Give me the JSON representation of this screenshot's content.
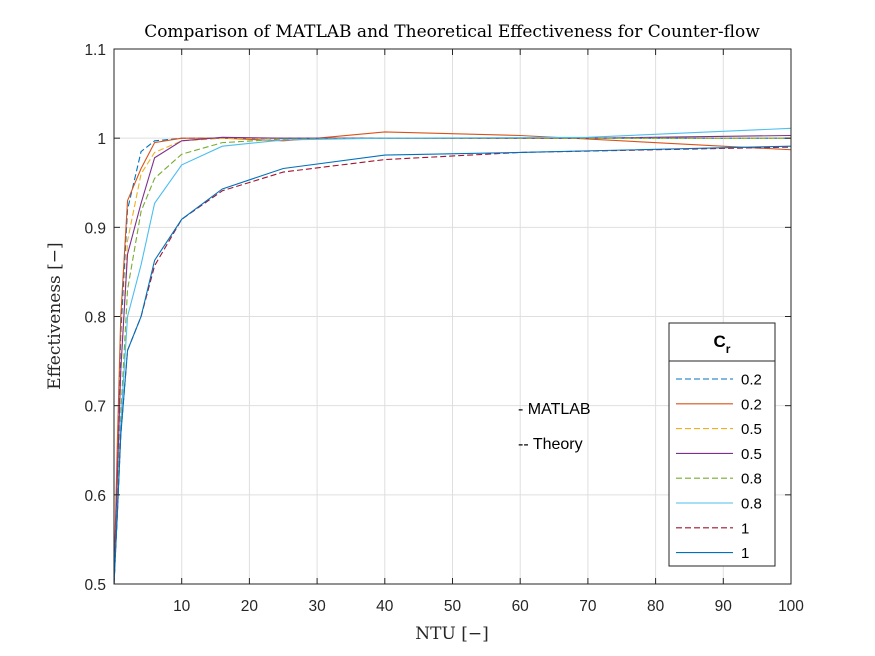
{
  "chart_data": {
    "type": "line",
    "title": "Comparison of MATLAB and Theoretical Effectiveness for Counter-flow",
    "xlabel": "NTU [−]",
    "ylabel": "Effectiveness [−]",
    "xlim": [
      0,
      100
    ],
    "ylim": [
      0.5,
      1.1
    ],
    "xticks": [
      10,
      20,
      30,
      40,
      50,
      60,
      70,
      80,
      90,
      100
    ],
    "xtick_labels": [
      "10",
      "20",
      "30",
      "40",
      "50",
      "60",
      "70",
      "80",
      "90",
      "100"
    ],
    "yticks": [
      0.5,
      0.6,
      0.7,
      0.8,
      0.9,
      1.0,
      1.1
    ],
    "ytick_labels": [
      "0.5",
      "0.6",
      "0.7",
      "0.8",
      "0.9",
      "1",
      "1.1"
    ],
    "grid": true,
    "legend": {
      "title_main": "C",
      "title_sub": "r",
      "placement": "lower-right"
    },
    "annotations": [
      "- MATLAB",
      "-- Theory"
    ],
    "series": [
      {
        "name": "0.2",
        "style": "dashed",
        "color": "#0072BD",
        "x": [
          0,
          0.5,
          1,
          2,
          4,
          6,
          10,
          16,
          25,
          40,
          60,
          100
        ],
        "y": [
          0.5,
          0.63,
          0.781,
          0.92,
          0.985,
          0.997,
          0.9999,
          1.0,
          1.0,
          1.0,
          1.0,
          1.0
        ]
      },
      {
        "name": "0.2",
        "style": "solid",
        "color": "#D95319",
        "x": [
          0,
          0.5,
          1,
          2,
          4,
          6,
          10,
          16,
          25,
          30,
          40,
          60,
          100
        ],
        "y": [
          0.5,
          0.66,
          0.8,
          0.93,
          0.966,
          0.995,
          1.0,
          1.0,
          0.997,
          1.0,
          1.007,
          1.003,
          0.987
        ]
      },
      {
        "name": "0.5",
        "style": "dashed",
        "color": "#EDB120",
        "x": [
          0,
          0.5,
          1,
          2,
          4,
          6,
          10,
          16,
          25,
          40,
          60,
          100
        ],
        "y": [
          0.5,
          0.61,
          0.736,
          0.885,
          0.96,
          0.984,
          0.997,
          0.9998,
          1.0,
          1.0,
          1.0,
          1.0
        ]
      },
      {
        "name": "0.5",
        "style": "solid",
        "color": "#7E2F8E",
        "x": [
          0,
          0.5,
          1,
          2,
          4,
          6,
          10,
          16,
          25,
          40,
          70,
          100
        ],
        "y": [
          0.5,
          0.62,
          0.74,
          0.87,
          0.927,
          0.978,
          0.997,
          1.001,
          1.0,
          1.0,
          1.0,
          1.003
        ]
      },
      {
        "name": "0.8",
        "style": "dashed",
        "color": "#77AC30",
        "x": [
          0,
          0.5,
          1,
          2,
          4,
          6,
          10,
          16,
          25,
          40,
          60,
          100
        ],
        "y": [
          0.5,
          0.59,
          0.69,
          0.83,
          0.918,
          0.955,
          0.982,
          0.995,
          0.999,
          1.0,
          1.0,
          1.0
        ]
      },
      {
        "name": "0.8",
        "style": "solid",
        "color": "#4DBEEE",
        "x": [
          0,
          0.5,
          1,
          2,
          4,
          6,
          10,
          16,
          25,
          40,
          70,
          100
        ],
        "y": [
          0.5,
          0.58,
          0.68,
          0.8,
          0.858,
          0.927,
          0.97,
          0.991,
          0.998,
          1.0,
          1.001,
          1.011
        ]
      },
      {
        "name": "1",
        "style": "dashed",
        "color": "#A2142F",
        "x": [
          0,
          0.5,
          1,
          2,
          4,
          6,
          10,
          16,
          25,
          40,
          60,
          100
        ],
        "y": [
          0.5,
          0.58,
          0.667,
          0.762,
          0.8,
          0.857,
          0.909,
          0.941,
          0.962,
          0.976,
          0.984,
          0.99
        ]
      },
      {
        "name": "1",
        "style": "solid",
        "color": "#0072BD",
        "x": [
          0,
          0.5,
          1,
          2,
          4,
          6,
          10,
          16,
          25,
          40,
          60,
          100
        ],
        "y": [
          0.5,
          0.58,
          0.667,
          0.762,
          0.8,
          0.863,
          0.909,
          0.943,
          0.966,
          0.981,
          0.984,
          0.991
        ]
      }
    ]
  }
}
